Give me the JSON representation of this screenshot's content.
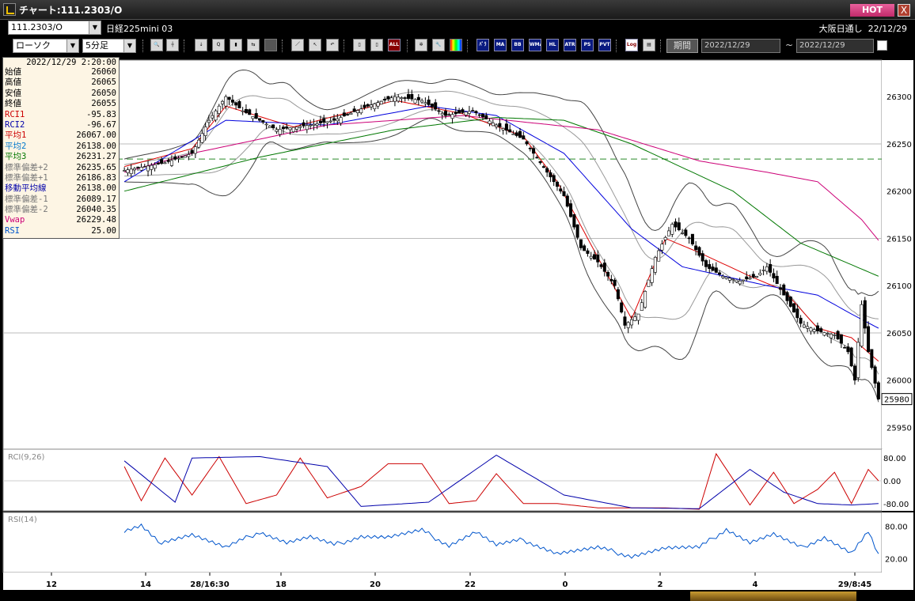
{
  "window": {
    "title": "チャート:111.2303/O",
    "hot_label": "HOT",
    "close_label": "X"
  },
  "header": {
    "symbol_value": "111.2303/O",
    "instrument_name": "日経225mini 03",
    "session_label": "大阪日通し",
    "header_date": "22/12/29"
  },
  "toolbar": {
    "chart_type": "ローソク",
    "interval": "5分足",
    "buttons": [
      "search-icon",
      "crosshair-icon",
      "download-icon",
      "zoom-icon",
      "bar-add-icon",
      "arrow-icon",
      "disabled-icon",
      "draw-line-icon",
      "cursor-icon",
      "undo-icon",
      "candle-icon",
      "candle2-icon",
      "ALL",
      "gear-icon",
      "wrench-icon",
      "palette-icon",
      "MA",
      "MA",
      "BB",
      "WMA",
      "HL",
      "ATR",
      "PS",
      "PVT",
      "Log",
      "export-icon"
    ],
    "txt_buttons": {
      "ma1": "ﾊﾟﾗ",
      "ma": "MA",
      "bb": "BB",
      "wma": "WMA",
      "hl": "HL",
      "atr": "ATR",
      "ps": "PS",
      "pvt": "PVT",
      "log": "Log",
      "all": "ALL"
    },
    "period_label": "期間",
    "date_from": "2022/12/29",
    "date_to": "2022/12/29"
  },
  "info": {
    "datetime": "2022/12/29  2:20:00",
    "rows": [
      {
        "label": "始値",
        "value": "26060",
        "color": "#000000"
      },
      {
        "label": "高値",
        "value": "26065",
        "color": "#000000"
      },
      {
        "label": "安値",
        "value": "26050",
        "color": "#000000"
      },
      {
        "label": "終値",
        "value": "26055",
        "color": "#000000"
      },
      {
        "label": "RCI1",
        "value": "-95.83",
        "color": "#cc0000"
      },
      {
        "label": "RCI2",
        "value": "-96.67",
        "color": "#0000aa"
      },
      {
        "label": "平均1",
        "value": "26067.00",
        "color": "#cc0000"
      },
      {
        "label": "平均2",
        "value": "26138.00",
        "color": "#0077cc"
      },
      {
        "label": "平均3",
        "value": "26231.27",
        "color": "#007700"
      },
      {
        "label": "標準偏差+2",
        "value": "26235.65",
        "color": "#777777"
      },
      {
        "label": "標準偏差+1",
        "value": "26186.83",
        "color": "#777777"
      },
      {
        "label": "移動平均線",
        "value": "26138.00",
        "color": "#0000aa"
      },
      {
        "label": "標準偏差-1",
        "value": "26089.17",
        "color": "#777777"
      },
      {
        "label": "標準偏差-2",
        "value": "26040.35",
        "color": "#777777"
      },
      {
        "label": "Vwap",
        "value": "26229.48",
        "color": "#cc0077"
      },
      {
        "label": "RSI",
        "value": "25.00",
        "color": "#0055cc"
      }
    ]
  },
  "chart_data": {
    "type": "candlestick",
    "price_ylim": [
      25932,
      26332
    ],
    "price_ticks": [
      "26300",
      "26250",
      "26200",
      "26150",
      "26100",
      "26050",
      "26000",
      "25950"
    ],
    "price_tick_values": [
      26300,
      26250,
      26200,
      26150,
      26100,
      26050,
      26000,
      25950
    ],
    "current_price": "25980",
    "dashed_line_value": 26234,
    "x_labels": [
      "12",
      "14",
      "28/16:30",
      "18",
      "20",
      "22",
      "0",
      "2",
      "4",
      "29/8:45"
    ],
    "rci_label": "RCI(9,26)",
    "rci_ylim": [
      -100,
      100
    ],
    "rci_ticks": [
      "80.00",
      "0.00",
      "-80.00"
    ],
    "rci_tick_values": [
      80,
      0,
      -80
    ],
    "rsi_label": "RSI(14)",
    "rsi_ylim": [
      0,
      100
    ],
    "rsi_ticks": [
      "80.00",
      "20.00"
    ],
    "rsi_tick_values": [
      80,
      20
    ],
    "close_anchors": [
      [
        0,
        26222
      ],
      [
        12,
        26230
      ],
      [
        20,
        26240
      ],
      [
        25,
        26275
      ],
      [
        30,
        26300
      ],
      [
        35,
        26285
      ],
      [
        40,
        26275
      ],
      [
        45,
        26265
      ],
      [
        55,
        26270
      ],
      [
        62,
        26275
      ],
      [
        72,
        26290
      ],
      [
        80,
        26300
      ],
      [
        88,
        26296
      ],
      [
        95,
        26280
      ],
      [
        103,
        26285
      ],
      [
        110,
        26270
      ],
      [
        118,
        26255
      ],
      [
        125,
        26220
      ],
      [
        130,
        26195
      ],
      [
        135,
        26140
      ],
      [
        140,
        26125
      ],
      [
        145,
        26100
      ],
      [
        148,
        26058
      ],
      [
        152,
        26070
      ],
      [
        157,
        26130
      ],
      [
        162,
        26165
      ],
      [
        167,
        26150
      ],
      [
        172,
        26120
      ],
      [
        177,
        26110
      ],
      [
        182,
        26105
      ],
      [
        187,
        26110
      ],
      [
        190,
        26120
      ],
      [
        195,
        26090
      ],
      [
        200,
        26060
      ],
      [
        205,
        26052
      ],
      [
        210,
        26048
      ],
      [
        214,
        26030
      ],
      [
        216,
        26000
      ],
      [
        218,
        26080
      ],
      [
        220,
        26030
      ],
      [
        223,
        25980
      ]
    ],
    "series": [
      {
        "name": "平均1",
        "color": "#dd0000",
        "anchors": [
          [
            0,
            26226
          ],
          [
            20,
            26245
          ],
          [
            30,
            26290
          ],
          [
            50,
            26268
          ],
          [
            80,
            26296
          ],
          [
            100,
            26282
          ],
          [
            118,
            26258
          ],
          [
            128,
            26210
          ],
          [
            140,
            26130
          ],
          [
            150,
            26065
          ],
          [
            160,
            26150
          ],
          [
            170,
            26135
          ],
          [
            185,
            26110
          ],
          [
            195,
            26095
          ],
          [
            205,
            26055
          ],
          [
            215,
            26045
          ],
          [
            223,
            26020
          ]
        ]
      },
      {
        "name": "平均2",
        "color": "#0000dd",
        "anchors": [
          [
            0,
            26210
          ],
          [
            30,
            26275
          ],
          [
            60,
            26270
          ],
          [
            90,
            26290
          ],
          [
            110,
            26280
          ],
          [
            130,
            26240
          ],
          [
            150,
            26160
          ],
          [
            165,
            26120
          ],
          [
            175,
            26112
          ],
          [
            190,
            26100
          ],
          [
            205,
            26090
          ],
          [
            215,
            26070
          ],
          [
            223,
            26055
          ]
        ]
      },
      {
        "name": "平均3",
        "color": "#007700",
        "anchors": [
          [
            0,
            26200
          ],
          [
            40,
            26236
          ],
          [
            80,
            26265
          ],
          [
            110,
            26278
          ],
          [
            130,
            26275
          ],
          [
            150,
            26250
          ],
          [
            180,
            26200
          ],
          [
            200,
            26145
          ],
          [
            223,
            26110
          ]
        ]
      },
      {
        "name": "Vwap",
        "color": "#cc0077",
        "anchors": [
          [
            0,
            26220
          ],
          [
            20,
            26240
          ],
          [
            60,
            26270
          ],
          [
            100,
            26280
          ],
          [
            140,
            26265
          ],
          [
            170,
            26232
          ],
          [
            190,
            26220
          ],
          [
            205,
            26210
          ],
          [
            218,
            26170
          ],
          [
            223,
            26148
          ]
        ]
      }
    ],
    "rci1_anchors": [
      [
        0,
        50
      ],
      [
        5,
        -70
      ],
      [
        12,
        80
      ],
      [
        20,
        -50
      ],
      [
        28,
        85
      ],
      [
        36,
        -80
      ],
      [
        45,
        -50
      ],
      [
        52,
        80
      ],
      [
        60,
        -60
      ],
      [
        70,
        -20
      ],
      [
        78,
        60
      ],
      [
        88,
        60
      ],
      [
        96,
        -80
      ],
      [
        104,
        -70
      ],
      [
        110,
        25
      ],
      [
        118,
        -80
      ],
      [
        128,
        -80
      ],
      [
        140,
        -95
      ],
      [
        160,
        -95
      ],
      [
        170,
        -100
      ],
      [
        175,
        95
      ],
      [
        185,
        -85
      ],
      [
        192,
        30
      ],
      [
        198,
        -80
      ],
      [
        205,
        -30
      ],
      [
        210,
        30
      ],
      [
        215,
        -80
      ],
      [
        220,
        40
      ],
      [
        223,
        0
      ]
    ],
    "rci2_anchors": [
      [
        0,
        70
      ],
      [
        15,
        -75
      ],
      [
        20,
        80
      ],
      [
        40,
        85
      ],
      [
        60,
        50
      ],
      [
        70,
        -90
      ],
      [
        90,
        -75
      ],
      [
        110,
        90
      ],
      [
        130,
        -50
      ],
      [
        150,
        -95
      ],
      [
        170,
        -98
      ],
      [
        185,
        40
      ],
      [
        195,
        -40
      ],
      [
        205,
        -80
      ],
      [
        215,
        -85
      ],
      [
        223,
        -80
      ]
    ],
    "rsi_anchors": [
      [
        0,
        70
      ],
      [
        5,
        80
      ],
      [
        10,
        50
      ],
      [
        20,
        65
      ],
      [
        30,
        40
      ],
      [
        40,
        70
      ],
      [
        48,
        50
      ],
      [
        55,
        60
      ],
      [
        62,
        45
      ],
      [
        70,
        62
      ],
      [
        78,
        60
      ],
      [
        88,
        72
      ],
      [
        96,
        45
      ],
      [
        104,
        70
      ],
      [
        110,
        45
      ],
      [
        118,
        55
      ],
      [
        128,
        30
      ],
      [
        140,
        40
      ],
      [
        150,
        25
      ],
      [
        160,
        40
      ],
      [
        170,
        40
      ],
      [
        178,
        75
      ],
      [
        185,
        50
      ],
      [
        192,
        65
      ],
      [
        200,
        40
      ],
      [
        207,
        60
      ],
      [
        215,
        30
      ],
      [
        220,
        70
      ],
      [
        223,
        25
      ]
    ]
  }
}
